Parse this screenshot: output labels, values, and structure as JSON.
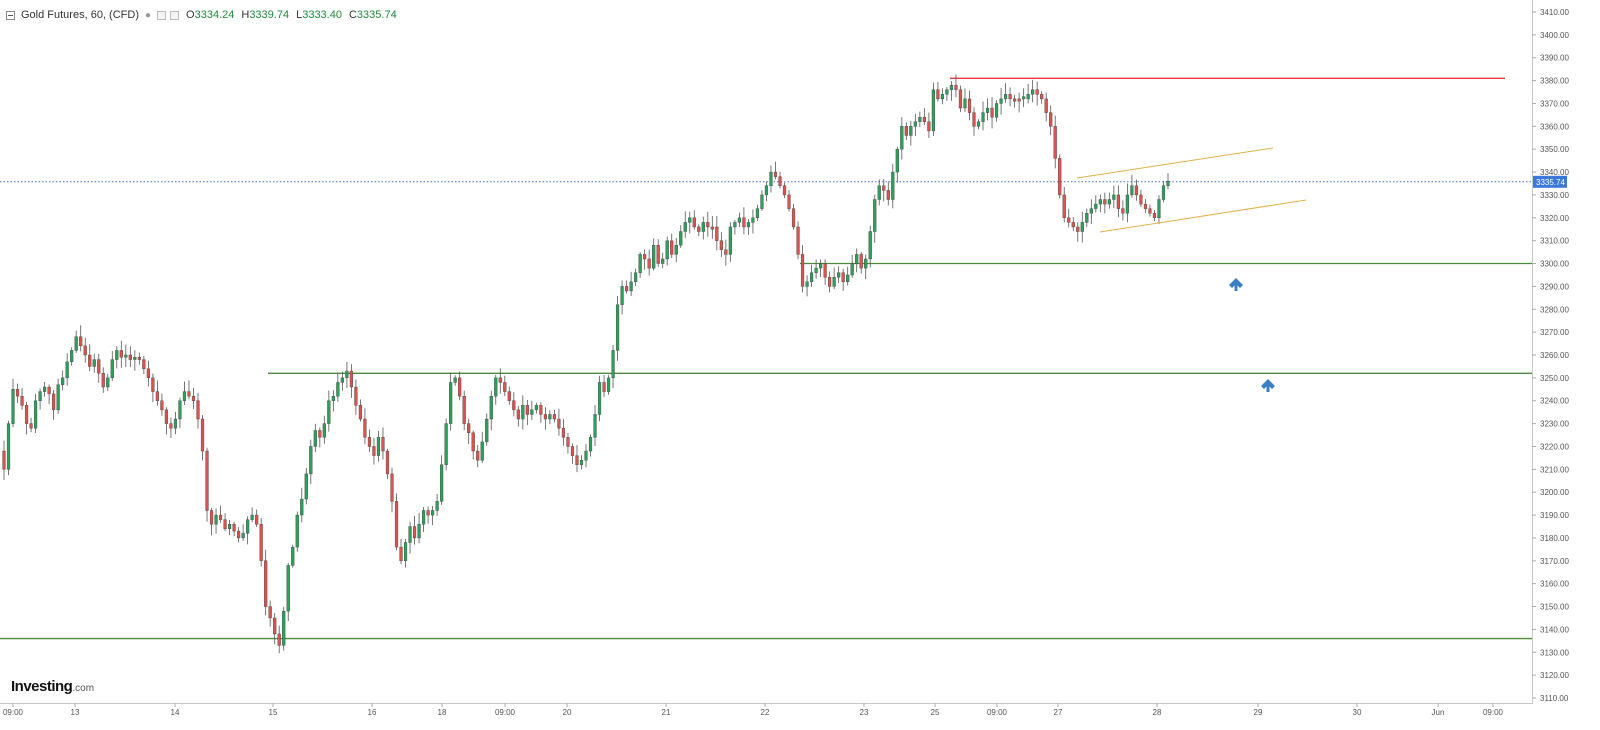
{
  "legend": {
    "title": "Gold Futures, 60, (CFD)",
    "open_label": "O",
    "open_value": "3334.24",
    "high_label": "H",
    "high_value": "3339.74",
    "low_label": "L",
    "low_value": "3333.40",
    "close_label": "C",
    "close_value": "3335.74"
  },
  "logo": {
    "main": "Investing",
    "suffix": ".com"
  },
  "price_axis": {
    "ticks": [
      "3410.00",
      "3400.00",
      "3390.00",
      "3380.00",
      "3370.00",
      "3360.00",
      "3350.00",
      "3340.00",
      "3330.00",
      "3320.00",
      "3310.00",
      "3300.00",
      "3290.00",
      "3280.00",
      "3270.00",
      "3260.00",
      "3250.00",
      "3240.00",
      "3230.00",
      "3220.00",
      "3210.00",
      "3200.00",
      "3190.00",
      "3180.00",
      "3170.00",
      "3160.00",
      "3150.00",
      "3140.00",
      "3130.00",
      "3120.00",
      "3110.00"
    ],
    "current_price_label": "3335.74"
  },
  "time_axis": {
    "labels": [
      "09:00",
      "13",
      "14",
      "15",
      "16",
      "18",
      "09:00",
      "20",
      "21",
      "22",
      "23",
      "25",
      "09:00",
      "27",
      "28",
      "29",
      "30",
      "Jun",
      "09:00"
    ]
  },
  "colors": {
    "bull": "#2ca05a",
    "bear": "#d9534f",
    "resistance": "#e8383d",
    "support": "#4a8c3a",
    "channel": "#e6b04a",
    "current_price_line": "#3c78d8",
    "arrow": "#3a7fc4",
    "axis_text": "#555555"
  },
  "chart_data": {
    "type": "candlestick",
    "title": "Gold Futures, 60, (CFD)",
    "ylim": [
      3106,
      3414
    ],
    "last_price": 3335.74,
    "horizontal_levels": [
      {
        "name": "resistance",
        "price": 3381,
        "color": "#e8383d"
      },
      {
        "name": "support-1",
        "price": 3300,
        "color": "#4a8c3a"
      },
      {
        "name": "support-2",
        "price": 3252,
        "color": "#4a8c3a"
      },
      {
        "name": "support-3",
        "price": 3136,
        "color": "#4a8c3a"
      }
    ],
    "closes": [
      3210,
      3230,
      3245,
      3242,
      3238,
      3230,
      3228,
      3240,
      3244,
      3246,
      3243,
      3236,
      3247,
      3250,
      3257,
      3262,
      3268,
      3264,
      3260,
      3255,
      3258,
      3252,
      3246,
      3250,
      3258,
      3262,
      3259,
      3260,
      3258,
      3259,
      3258,
      3254,
      3250,
      3244,
      3240,
      3236,
      3230,
      3228,
      3232,
      3240,
      3244,
      3242,
      3240,
      3232,
      3218,
      3192,
      3186,
      3190,
      3188,
      3184,
      3186,
      3183,
      3180,
      3182,
      3188,
      3190,
      3186,
      3170,
      3150,
      3145,
      3138,
      3133,
      3148,
      3168,
      3176,
      3190,
      3197,
      3208,
      3220,
      3227,
      3224,
      3230,
      3240,
      3242,
      3248,
      3250,
      3253,
      3246,
      3238,
      3232,
      3224,
      3220,
      3216,
      3224,
      3218,
      3208,
      3196,
      3176,
      3170,
      3178,
      3185,
      3180,
      3186,
      3192,
      3190,
      3192,
      3196,
      3212,
      3230,
      3248,
      3250,
      3242,
      3230,
      3226,
      3218,
      3214,
      3222,
      3232,
      3242,
      3250,
      3248,
      3244,
      3240,
      3236,
      3232,
      3238,
      3234,
      3236,
      3238,
      3234,
      3232,
      3234,
      3232,
      3228,
      3224,
      3220,
      3216,
      3212,
      3214,
      3218,
      3224,
      3234,
      3248,
      3244,
      3250,
      3262,
      3282,
      3290,
      3288,
      3292,
      3296,
      3304,
      3302,
      3298,
      3308,
      3300,
      3302,
      3310,
      3304,
      3308,
      3314,
      3318,
      3320,
      3316,
      3314,
      3318,
      3316,
      3316,
      3310,
      3306,
      3304,
      3316,
      3318,
      3320,
      3316,
      3318,
      3320,
      3324,
      3330,
      3334,
      3340,
      3338,
      3334,
      3330,
      3324,
      3316,
      3304,
      3290,
      3292,
      3296,
      3298,
      3300,
      3294,
      3290,
      3294,
      3296,
      3292,
      3295,
      3300,
      3304,
      3298,
      3302,
      3314,
      3328,
      3334,
      3332,
      3328,
      3340,
      3350,
      3360,
      3356,
      3360,
      3362,
      3364,
      3362,
      3358,
      3376,
      3372,
      3374,
      3376,
      3378,
      3376,
      3368,
      3372,
      3366,
      3360,
      3362,
      3366,
      3368,
      3364,
      3370,
      3372,
      3374,
      3372,
      3372,
      3372,
      3372,
      3374,
      3376,
      3374,
      3372,
      3366,
      3360,
      3346,
      3330,
      3320,
      3318,
      3316,
      3314,
      3318,
      3322,
      3324,
      3326,
      3328,
      3326,
      3328,
      3330,
      3324,
      3322,
      3330,
      3334,
      3330,
      3326,
      3324,
      3322,
      3320,
      3328,
      3334,
      3336
    ]
  }
}
